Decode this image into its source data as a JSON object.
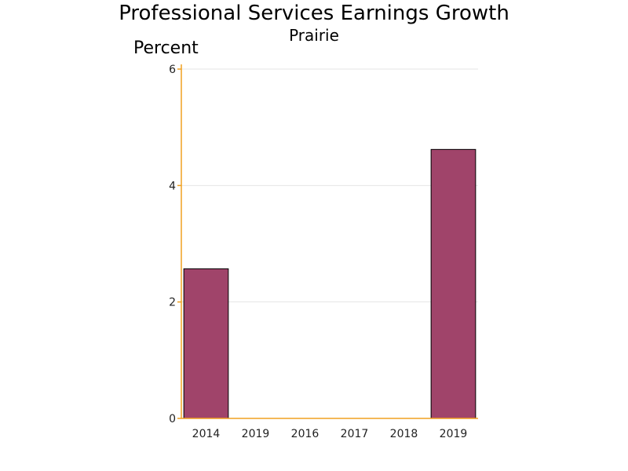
{
  "chart_data": {
    "type": "bar",
    "title": "Professional Services Earnings Growth",
    "subtitle": "Prairie",
    "ylabel": "Percent",
    "xlabel": "",
    "categories": [
      "2014",
      "2019",
      "2016",
      "2017",
      "2018",
      "2019"
    ],
    "values": [
      2.57,
      0,
      0,
      0,
      0,
      4.62
    ],
    "ylim": [
      0,
      6
    ],
    "yticks": [
      0,
      2,
      4,
      6
    ],
    "grid": true,
    "legend": "none"
  },
  "colors": {
    "bar_fill": "#a0446a",
    "bar_stroke": "#000000",
    "axis": "#f0a020",
    "grid": "#e4e4e4"
  }
}
